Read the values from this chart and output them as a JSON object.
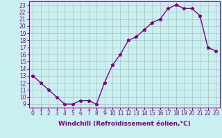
{
  "x": [
    0,
    1,
    2,
    3,
    4,
    5,
    6,
    7,
    8,
    9,
    10,
    11,
    12,
    13,
    14,
    15,
    16,
    17,
    18,
    19,
    20,
    21,
    22,
    23
  ],
  "y": [
    13,
    12,
    11,
    10,
    9,
    9,
    9.5,
    9.5,
    9,
    12,
    14.5,
    16,
    18,
    18.5,
    19.5,
    20.5,
    21,
    22.5,
    23,
    22.5,
    22.5,
    21.5,
    17,
    16.5
  ],
  "line_color": "#800080",
  "marker": "*",
  "bg_color": "#c8f0f0",
  "grid_color": "#b0b0b0",
  "xlabel": "Windchill (Refroidissement éolien,°C)",
  "ylabel_ticks": [
    9,
    10,
    11,
    12,
    13,
    14,
    15,
    16,
    17,
    18,
    19,
    20,
    21,
    22,
    23
  ],
  "xlim": [
    -0.5,
    23.5
  ],
  "ylim": [
    8.5,
    23.5
  ],
  "xticks": [
    0,
    1,
    2,
    3,
    4,
    5,
    6,
    7,
    8,
    9,
    10,
    11,
    12,
    13,
    14,
    15,
    16,
    17,
    18,
    19,
    20,
    21,
    22,
    23
  ],
  "tick_fontsize": 5.5,
  "label_fontsize": 6.5,
  "line_width": 1.0,
  "marker_size": 3.5
}
